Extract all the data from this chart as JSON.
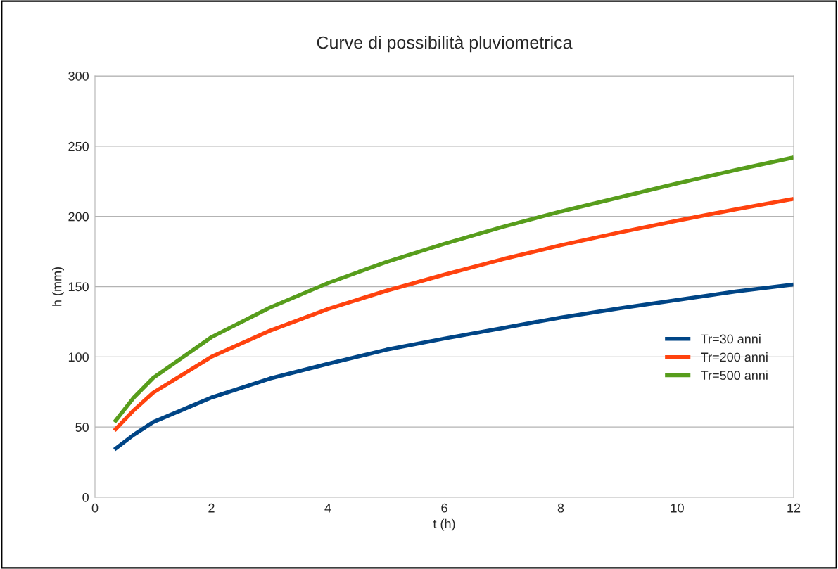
{
  "chart_data": {
    "type": "line",
    "title": "Curve di possibilità pluviometrica",
    "xlabel": "t (h)",
    "ylabel": "h (mm)",
    "x": [
      0.333,
      0.667,
      1,
      2,
      3,
      4,
      5,
      6,
      7,
      8,
      9,
      10,
      11,
      12
    ],
    "series": [
      {
        "name": "Tr=30 anni",
        "color": "#004586",
        "values": [
          34,
          44.5,
          53.5,
          71,
          84.5,
          95,
          105,
          113,
          120.5,
          128,
          134.5,
          140.5,
          146.5,
          151.5
        ]
      },
      {
        "name": "Tr=200 anni",
        "color": "#ff420e",
        "values": [
          47.5,
          62,
          74.5,
          100,
          118.5,
          134,
          147,
          158.5,
          169.5,
          179.5,
          188.5,
          197,
          205,
          212.5
        ]
      },
      {
        "name": "Tr=500 anni",
        "color": "#579d1c",
        "values": [
          53.5,
          71,
          85,
          114,
          135,
          152.5,
          167.5,
          180.5,
          192.5,
          203.5,
          213.5,
          223.5,
          233,
          242
        ]
      }
    ],
    "xlim": [
      0,
      12
    ],
    "xticks": [
      0,
      2,
      4,
      6,
      8,
      10,
      12
    ],
    "ylim": [
      0,
      300
    ],
    "yticks": [
      0,
      50,
      100,
      150,
      200,
      250,
      300
    ],
    "grid": "y",
    "legend": "right",
    "marker": "none",
    "line_style": "solid"
  }
}
